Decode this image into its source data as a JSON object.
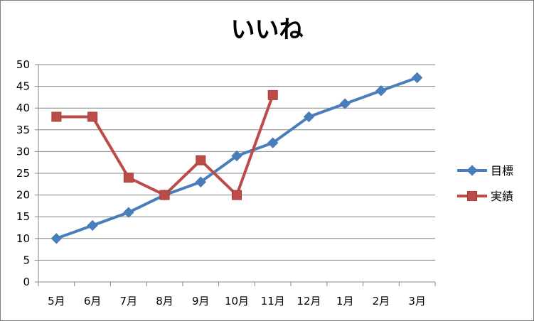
{
  "chart_data": {
    "type": "line",
    "title": "いいね",
    "categories": [
      "5月",
      "6月",
      "7月",
      "8月",
      "9月",
      "10月",
      "11月",
      "12月",
      "1月",
      "2月",
      "3月"
    ],
    "series": [
      {
        "name": "目標",
        "color": "#4a7ebb",
        "marker": "diamond",
        "values": [
          10,
          13,
          16,
          20,
          23,
          29,
          32,
          38,
          41,
          44,
          47
        ]
      },
      {
        "name": "実績",
        "color": "#be4b48",
        "marker": "square",
        "values": [
          38,
          38,
          24,
          20,
          28,
          20,
          43,
          null,
          null,
          null,
          null
        ]
      }
    ],
    "ylim": [
      0,
      50
    ],
    "yticks": [
      0,
      5,
      10,
      15,
      20,
      25,
      30,
      35,
      40,
      45,
      50
    ],
    "grid": true,
    "legend_position": "right"
  }
}
